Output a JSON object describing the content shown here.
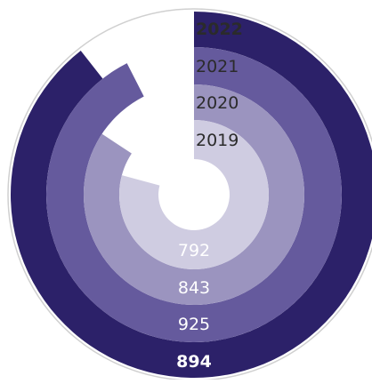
{
  "chart_data": {
    "type": "radial-bar",
    "series": [
      {
        "year": "2019",
        "value": 792,
        "value_label": "792",
        "color": "#cfcce1",
        "bold": false
      },
      {
        "year": "2020",
        "value": 843,
        "value_label": "843",
        "color": "#9b94bf",
        "bold": false
      },
      {
        "year": "2021",
        "value": 925,
        "value_label": "925",
        "color": "#655a9d",
        "bold": false
      },
      {
        "year": "2022",
        "value": 894,
        "value_label": "894",
        "color": "#2c2169",
        "bold": true
      }
    ],
    "colors": {
      "year_label_text": "#2b2b2b",
      "value_label_text": "#ffffff",
      "outer_ring": "#d0d0d0"
    }
  }
}
